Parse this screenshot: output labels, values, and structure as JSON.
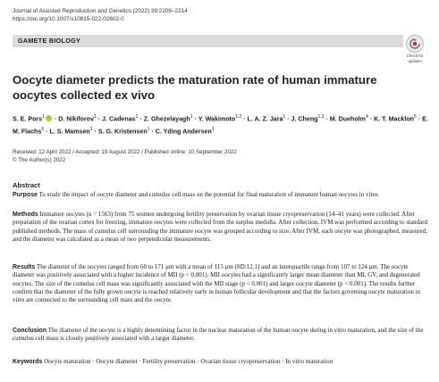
{
  "journal": {
    "citation": "Journal of Assisted Reproduction and Genetics (2022) 39:2209–2214",
    "doi": "https://doi.org/10.1007/s10815-022-02602-0"
  },
  "section": "GAMETE BIOLOGY",
  "check_updates": {
    "line1": "Check for",
    "line2": "updates"
  },
  "title_line1": "Oocyte diameter predicts the maturation rate of human immature",
  "title_line2": "oocytes collected ex vivo",
  "authors": [
    {
      "name": "S. E. Pors",
      "sup": "1",
      "orcid": true
    },
    {
      "name": "D. Nikiforov",
      "sup": "1"
    },
    {
      "name": "J. Cadenas",
      "sup": "1"
    },
    {
      "name": "Z. Ghezelayagh",
      "sup": "1"
    },
    {
      "name": "Y. Wakimoto",
      "sup": "1,2"
    },
    {
      "name": "L. A. Z. Jara",
      "sup": "1"
    },
    {
      "name": "J. Cheng",
      "sup": "1,3"
    },
    {
      "name": "M. Dueholm",
      "sup": "4"
    },
    {
      "name": "K. T. Macklon",
      "sup": "5"
    },
    {
      "name": "E. M. Flachs",
      "sup": "6"
    },
    {
      "name": "L. S. Mamsen",
      "sup": "1"
    },
    {
      "name": "S. G. Kristensen",
      "sup": "1"
    },
    {
      "name": "C. Yding Andersen",
      "sup": "1"
    }
  ],
  "dates": "Received: 12 April 2022 / Accepted: 19 August 2022 / Published online: 10 September 2022",
  "copyright": "© The Author(s) 2022",
  "abstract_heading": "Abstract",
  "purpose_label": "Purpose",
  "purpose_text": "To study the impact of oocyte diameter and cumulus cell mass on the potential for final maturation of immature human oocytes in vitro.",
  "methods_label": "Methods",
  "methods_text": "Immature oocytes (n = 1563) from 75 women undergoing fertility preservation by ovarian tissue cryopreservation (14–41 years) were collected. After preparation of the ovarian cortex for freezing, immature oocytes were collected from the surplus medulla. After collection, IVM was performed according to standard published methods. The mass of cumulus cell surrounding the immature oocyte was grouped according to size. After IVM, each oocyte was photographed, measured, and the diameter was calculated as a mean of two perpendicular measurements.",
  "results_label": "Results",
  "results_text": "The diameter of the oocytes ranged from 60 to 171 μm with a mean of 115 μm (SD:12.1) and an interquartile range from 107 to 124 μm. The oocyte diameter was positively associated with a higher incidence of MII (p < 0.001). MII oocytes had a significantly larger mean diameter than MI, GV, and degenerated oocytes. The size of the cumulus cell mass was significantly associated with the MII stage (p < 0.001) and larger oocyte diameter (p < 0.001). The results further confirm that the diameter of the fully grown oocyte is reached relatively early in human follicular development and that the factors governing oocyte maturation in vitro are connected to the surrounding cell mass and the oocyte.",
  "conclusion_label": "Conclusion",
  "conclusion_text": "The diameter of the oocyte is a highly determining factor in the nuclear maturation of the human oocyte during in vitro maturation, and the size of the cumulus cell mass is closely positively associated with a larger diameter.",
  "keywords_label": "Keywords",
  "keywords_text": "Oocyte maturation · Oocyte diameter · Fertility preservation · Ovarian tissue cryopreservation · In vitro maturation"
}
